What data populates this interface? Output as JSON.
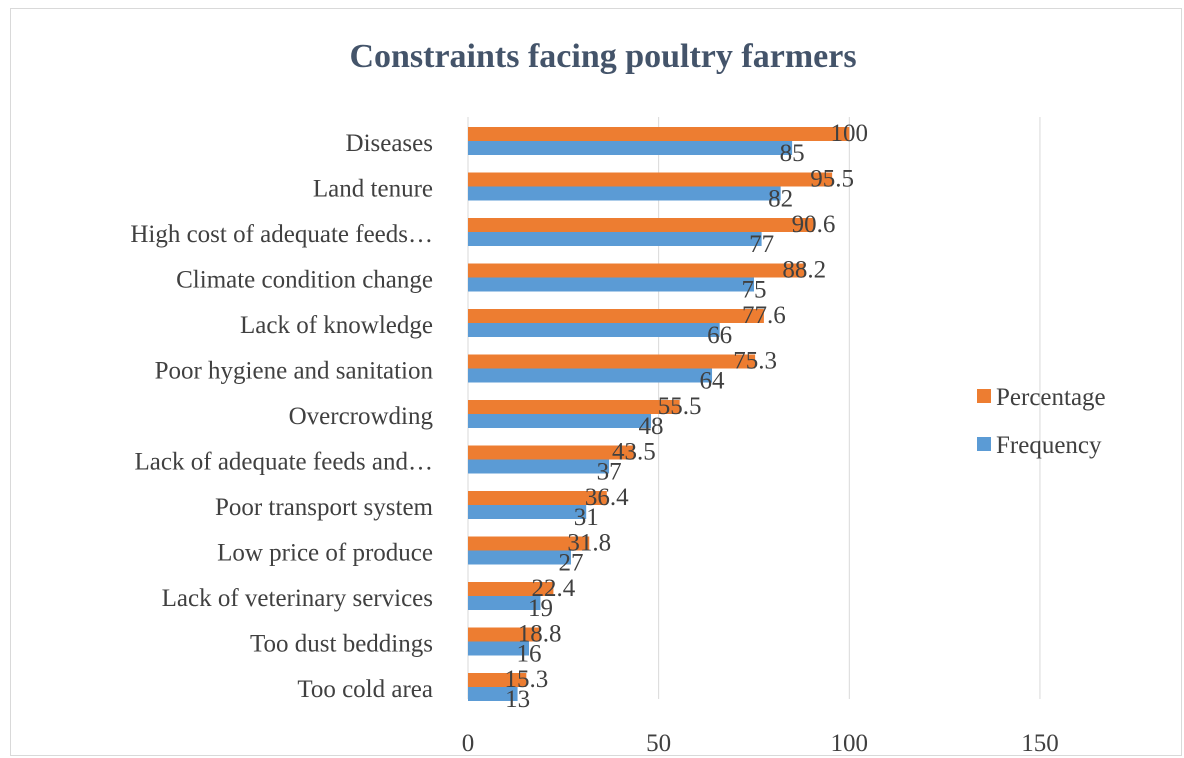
{
  "chart_data": {
    "type": "bar",
    "orientation": "horizontal",
    "title": "Constraints facing poultry farmers",
    "categories": [
      "Diseases",
      "Land tenure",
      "High cost of adequate feeds…",
      "Climate condition change",
      "Lack of knowledge",
      "Poor hygiene and sanitation",
      "Overcrowding",
      "Lack of adequate  feeds and…",
      "Poor transport system",
      "Low price of produce",
      "Lack of veterinary services",
      "Too dust beddings",
      "Too cold area"
    ],
    "series": [
      {
        "name": "Percentage",
        "color": "#ed7d31",
        "values": [
          100,
          95.5,
          90.6,
          88.2,
          77.6,
          75.3,
          55.5,
          43.5,
          36.4,
          31.8,
          22.4,
          18.8,
          15.3
        ]
      },
      {
        "name": "Frequency",
        "color": "#5b9bd5",
        "values": [
          85,
          82,
          77,
          75,
          66,
          64,
          48,
          37,
          31,
          27,
          19,
          16,
          13
        ]
      }
    ],
    "x_ticks": [
      0,
      50,
      100,
      150
    ],
    "xlim": [
      0,
      180
    ],
    "grid": true,
    "legend_position": "right"
  }
}
